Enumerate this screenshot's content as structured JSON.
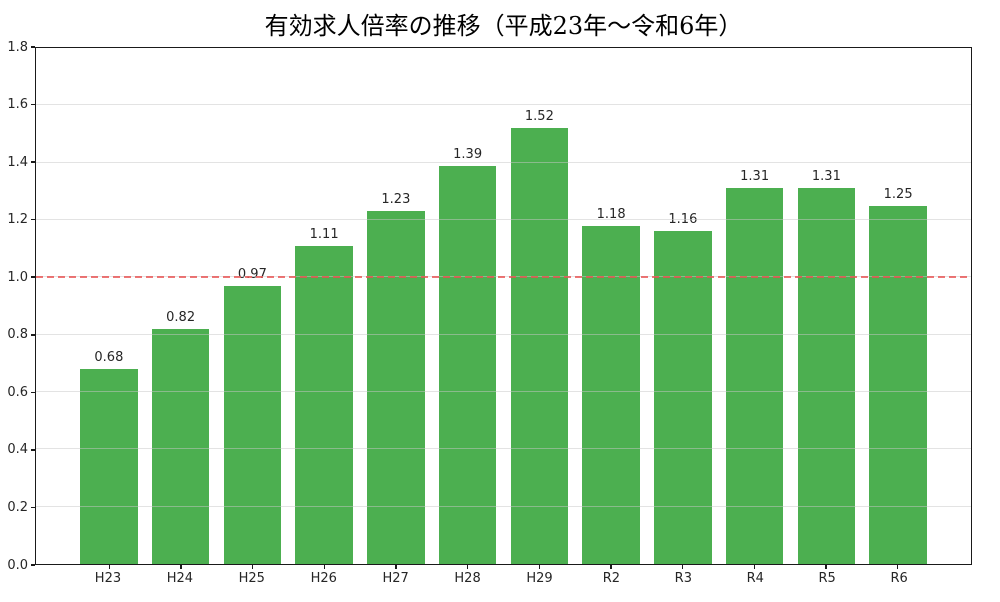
{
  "chart_data": {
    "type": "bar",
    "title": "有効求人倍率の推移（平成23年～令和6年）",
    "categories": [
      "H23",
      "H24",
      "H25",
      "H26",
      "H27",
      "H28",
      "H29",
      "R2",
      "R3",
      "R4",
      "R5",
      "R6"
    ],
    "values": [
      0.68,
      0.82,
      0.97,
      1.11,
      1.23,
      1.39,
      1.52,
      1.18,
      1.16,
      1.31,
      1.31,
      1.25
    ],
    "value_labels": [
      "0.68",
      "0.82",
      "0.97",
      "1.11",
      "1.23",
      "1.39",
      "1.52",
      "1.18",
      "1.16",
      "1.31",
      "1.31",
      "1.25"
    ],
    "xlabel": "",
    "ylabel": "",
    "ylim": [
      0,
      1.8
    ],
    "ytick_step": 0.2,
    "ytick_labels": [
      "0.0",
      "0.2",
      "0.4",
      "0.6",
      "0.8",
      "1.0",
      "1.2",
      "1.4",
      "1.6",
      "1.8"
    ],
    "reference_line_y": 1.0,
    "grid": true,
    "legend": false,
    "colors": {
      "bar": "#4caf50",
      "reference_line": "#e85b5b",
      "gridline": "#e3e3e3",
      "axis": "#1a1a1a",
      "text": "#262626",
      "title_text": "#000000",
      "background": "#ffffff"
    }
  }
}
